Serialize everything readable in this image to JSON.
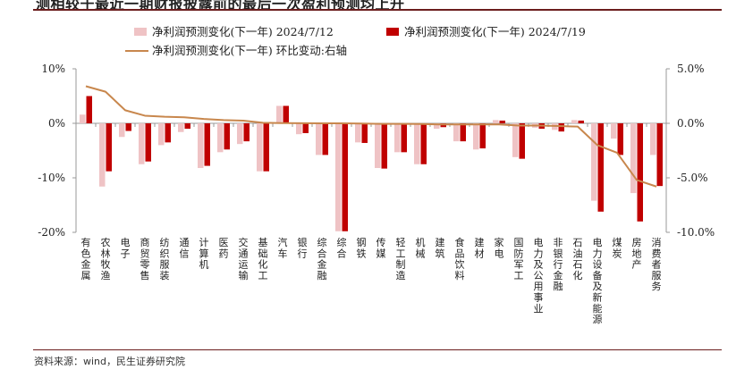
{
  "page": {
    "title": "测相较于最近一期财报披露前的最后一次盈利预测均上升",
    "source": "资料来源：wind，民生证券研究院"
  },
  "colors": {
    "series_a": "#efc3c5",
    "series_b": "#c00000",
    "series_c": "#c8874d",
    "axis": "#999999"
  },
  "chart_data": {
    "type": "bar",
    "title": "",
    "categories": [
      "有色金属",
      "农林牧渔",
      "电子",
      "商贸零售",
      "纺织服装",
      "通信",
      "计算机",
      "医药",
      "交通运输",
      "基础化工",
      "汽车",
      "银行",
      "综合金融",
      "综合",
      "钢铁",
      "传媒",
      "轻工制造",
      "机械",
      "建筑",
      "食品饮料",
      "建材",
      "家电",
      "国防军工",
      "电力及公用事业",
      "非银行金融",
      "石油石化",
      "电力设备及新能源",
      "煤炭",
      "房地产",
      "消费者服务"
    ],
    "series": [
      {
        "name": "净利润预测变化(下一年) 2024/7/12",
        "axis": "left",
        "kind": "bar",
        "values": [
          1.6,
          -11.6,
          -2.5,
          -7.5,
          -4.0,
          -1.6,
          -8.2,
          -5.3,
          -3.8,
          -8.8,
          3.2,
          -2.0,
          -5.8,
          -19.8,
          -3.5,
          -8.2,
          -5.3,
          -7.5,
          -1.0,
          -3.3,
          -4.8,
          0.6,
          -6.2,
          -0.8,
          -1.2,
          0.6,
          -14.2,
          -2.8,
          -12.8,
          -5.8
        ]
      },
      {
        "name": "净利润预测变化(下一年) 2024/7/19",
        "axis": "left",
        "kind": "bar",
        "values": [
          5.0,
          -8.8,
          -1.4,
          -7.0,
          -3.5,
          -1.0,
          -7.8,
          -4.8,
          -3.3,
          -8.8,
          3.2,
          -1.8,
          -5.8,
          -19.8,
          -3.6,
          -8.3,
          -5.3,
          -7.5,
          -0.7,
          -3.3,
          -4.6,
          0.5,
          -6.5,
          -1.0,
          -1.5,
          0.5,
          -16.2,
          -5.8,
          -18.0,
          -11.5
        ]
      },
      {
        "name": "净利润预测变化(下一年) 环比变动:右轴",
        "axis": "right",
        "kind": "line",
        "values": [
          3.4,
          2.9,
          1.2,
          0.7,
          0.6,
          0.55,
          0.4,
          0.3,
          0.25,
          0.05,
          0.02,
          0.01,
          0.0,
          0.0,
          -0.02,
          -0.05,
          -0.05,
          -0.06,
          -0.1,
          -0.1,
          -0.1,
          -0.1,
          -0.2,
          -0.2,
          -0.25,
          -0.3,
          -2.0,
          -2.7,
          -5.2,
          -5.8
        ]
      }
    ],
    "y_left": {
      "min": -20,
      "max": 10,
      "ticks": [
        10,
        0,
        -10,
        -20
      ],
      "format": "percent_int"
    },
    "y_right": {
      "min": -10,
      "max": 5,
      "ticks": [
        5.0,
        0.0,
        -5.0,
        -10.0
      ],
      "format": "percent_1"
    },
    "legend": {
      "position": "top"
    }
  }
}
